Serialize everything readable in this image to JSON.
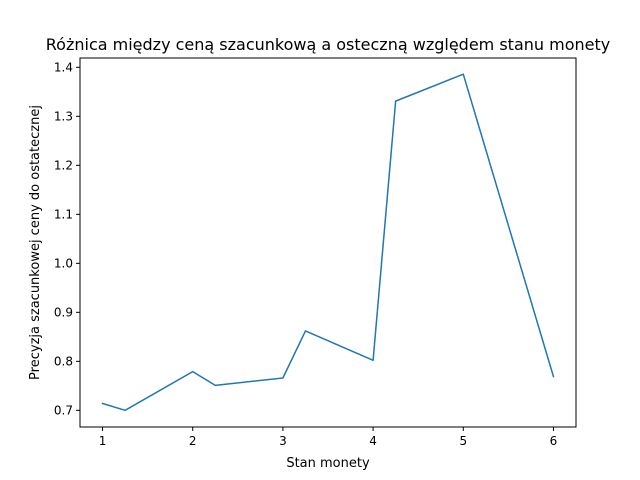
{
  "chart_data": {
    "type": "line",
    "title": "Różnica między ceną szacunkową a osteczną względem stanu monety",
    "xlabel": "Stan monety",
    "ylabel": "Precyzja szacunkowej ceny do ostatecznej",
    "xlim": [
      0.75,
      6.25
    ],
    "ylim": [
      0.666,
      1.419
    ],
    "xticks": [
      1,
      2,
      3,
      4,
      5,
      6
    ],
    "yticks": [
      0.7,
      0.8,
      0.9,
      1.0,
      1.1,
      1.2,
      1.3,
      1.4
    ],
    "ytick_labels": [
      "0.7",
      "0.8",
      "0.9",
      "1.0",
      "1.1",
      "1.2",
      "1.3",
      "1.4"
    ],
    "grid": false,
    "series": [
      {
        "color": "#1f77b4",
        "x": [
          1,
          1.25,
          2,
          2.25,
          3,
          3.25,
          4,
          4.25,
          5,
          6
        ],
        "y": [
          0.714,
          0.7,
          0.779,
          0.751,
          0.766,
          0.862,
          0.802,
          1.331,
          1.386,
          0.769
        ]
      }
    ]
  }
}
